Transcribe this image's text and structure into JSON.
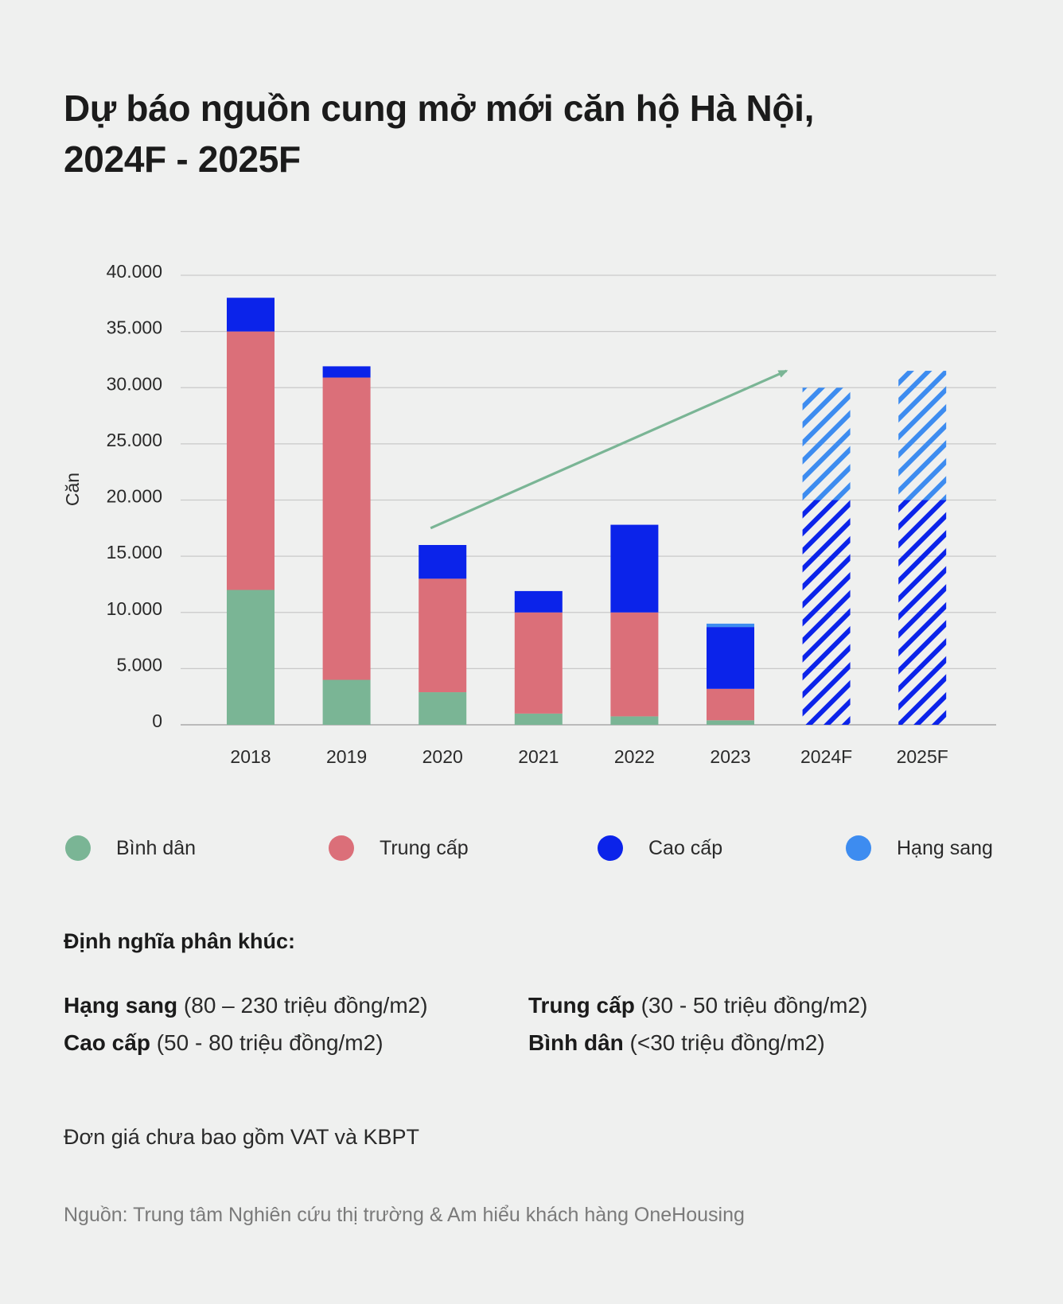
{
  "title": {
    "line1": "Dự báo nguồn cung mở mới căn hộ Hà Nội,",
    "line2": "2024F - 2025F"
  },
  "chart_data": {
    "type": "bar",
    "stacked": true,
    "ylabel": "Căn",
    "xlabel": "",
    "ylim": [
      0,
      40000
    ],
    "y_ticks": [
      0,
      5000,
      10000,
      15000,
      20000,
      25000,
      30000,
      35000,
      40000
    ],
    "y_tick_labels": [
      "0",
      "5.000",
      "10.000",
      "15.000",
      "20.000",
      "25.000",
      "30.000",
      "35.000",
      "40.000"
    ],
    "grid": true,
    "categories": [
      "2018",
      "2019",
      "2020",
      "2021",
      "2022",
      "2023",
      "2024F",
      "2025F"
    ],
    "series": [
      {
        "name": "Bình dân",
        "color": "#7ab595",
        "values": [
          12000,
          4000,
          2900,
          1000,
          750,
          400,
          null,
          null
        ]
      },
      {
        "name": "Trung cấp",
        "color": "#db6f79",
        "values": [
          23000,
          26900,
          10100,
          9000,
          9250,
          2800,
          null,
          null
        ]
      },
      {
        "name": "Cao cấp",
        "color": "#0b23ea",
        "values": [
          3000,
          1000,
          3000,
          1900,
          7800,
          5500,
          null,
          null
        ]
      },
      {
        "name": "Hạng sang",
        "color": "#3d8cf0",
        "values": [
          0,
          0,
          0,
          0,
          0,
          300,
          null,
          null
        ]
      }
    ],
    "forecast": [
      {
        "category": "2024F",
        "low": 20000,
        "high": 30000
      },
      {
        "category": "2025F",
        "low": 20000,
        "high": 31500
      }
    ],
    "annotation": {
      "type": "trend-arrow",
      "from_category": "2020",
      "from_value": 17500,
      "to_category": "2024F",
      "to_value": 31500,
      "color": "#7ab595"
    },
    "legend_position": "bottom"
  },
  "legend": [
    {
      "label": "Bình dân",
      "color": "#7ab595"
    },
    {
      "label": "Trung cấp",
      "color": "#db6f79"
    },
    {
      "label": "Cao cấp",
      "color": "#0b23ea"
    },
    {
      "label": "Hạng sang",
      "color": "#3d8cf0"
    }
  ],
  "definitions": {
    "heading": "Định nghĩa phân khúc:",
    "items": [
      {
        "name": "Hạng sang",
        "range": " (80 – 230 triệu đồng/m2)"
      },
      {
        "name": "Trung cấp",
        "range": " (30 - 50 triệu đồng/m2)"
      },
      {
        "name": "Cao cấp",
        "range": " (50 - 80 triệu đồng/m2)"
      },
      {
        "name": "Bình dân",
        "range": " (<30 triệu đồng/m2)"
      }
    ]
  },
  "note": "Đơn giá chưa bao gồm VAT và KBPT",
  "source": "Nguồn: Trung tâm Nghiên cứu thị trường & Am hiểu khách hàng OneHousing",
  "forecast_colors": {
    "dark": "#0b23ea",
    "light": "#3d8cf0"
  }
}
